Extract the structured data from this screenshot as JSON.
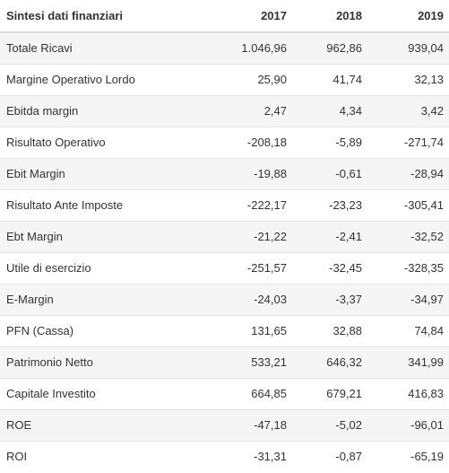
{
  "table": {
    "headers": [
      "Sintesi dati finanziari",
      "2017",
      "2018",
      "2019"
    ],
    "rows": [
      {
        "label": "Totale Ricavi",
        "values": [
          "1.046,96",
          "962,86",
          "939,04"
        ]
      },
      {
        "label": "Margine Operativo Lordo",
        "values": [
          "25,90",
          "41,74",
          "32,13"
        ]
      },
      {
        "label": "Ebitda margin",
        "values": [
          "2,47",
          "4,34",
          "3,42"
        ]
      },
      {
        "label": "Risultato Operativo",
        "values": [
          "-208,18",
          "-5,89",
          "-271,74"
        ]
      },
      {
        "label": "Ebit Margin",
        "values": [
          "-19,88",
          "-0,61",
          "-28,94"
        ]
      },
      {
        "label": "Risultato Ante Imposte",
        "values": [
          "-222,17",
          "-23,23",
          "-305,41"
        ]
      },
      {
        "label": "Ebt Margin",
        "values": [
          "-21,22",
          "-2,41",
          "-32,52"
        ]
      },
      {
        "label": "Utile di esercizio",
        "values": [
          "-251,57",
          "-32,45",
          "-328,35"
        ]
      },
      {
        "label": "E-Margin",
        "values": [
          "-24,03",
          "-3,37",
          "-34,97"
        ]
      },
      {
        "label": "PFN (Cassa)",
        "values": [
          "131,65",
          "32,88",
          "74,84"
        ]
      },
      {
        "label": "Patrimonio Netto",
        "values": [
          "533,21",
          "646,32",
          "341,99"
        ]
      },
      {
        "label": "Capitale Investito",
        "values": [
          "664,85",
          "679,21",
          "416,83"
        ]
      },
      {
        "label": "ROE",
        "values": [
          "-47,18",
          "-5,02",
          "-96,01"
        ]
      },
      {
        "label": "ROI",
        "values": [
          "-31,31",
          "-0,87",
          "-65,19"
        ]
      }
    ]
  }
}
